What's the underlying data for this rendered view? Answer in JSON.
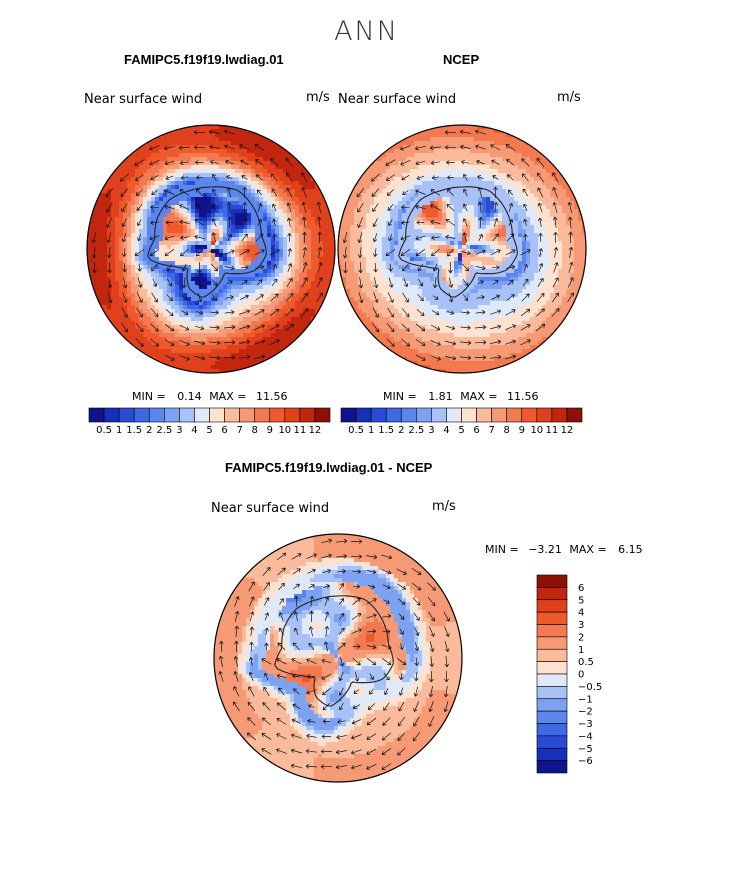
{
  "title": "ANN",
  "panels": [
    {
      "id": "model",
      "title": "FAMIPC5.f19f19.lwdiag.01",
      "field_label": "Near surface wind",
      "units": "m/s",
      "stats": {
        "min_label": "MIN =",
        "min": "0.14",
        "max_label": "MAX =",
        "max": "11.56"
      },
      "colorbar": {
        "levels": [
          "0.5",
          "1",
          "1.5",
          "2",
          "2.5",
          "3",
          "4",
          "5",
          "6",
          "7",
          "8",
          "9",
          "10",
          "11",
          "12"
        ],
        "colors": [
          "#10148c",
          "#1a2fb8",
          "#2b4bd6",
          "#3d68e6",
          "#5a86ee",
          "#7ea2f2",
          "#a8c1f6",
          "#dfe9f8",
          "#fde2d0",
          "#f9bb9c",
          "#f69a75",
          "#f37a50",
          "#ee5a2c",
          "#e0401c",
          "#c2260f",
          "#8e1006"
        ]
      }
    },
    {
      "id": "obs",
      "title": "NCEP",
      "field_label": "Near surface wind",
      "units": "m/s",
      "stats": {
        "min_label": "MIN =",
        "min": "1.81",
        "max_label": "MAX =",
        "max": "11.56"
      },
      "colorbar": {
        "levels": [
          "0.5",
          "1",
          "1.5",
          "2",
          "2.5",
          "3",
          "4",
          "5",
          "6",
          "7",
          "8",
          "9",
          "10",
          "11",
          "12"
        ],
        "colors": [
          "#10148c",
          "#1a2fb8",
          "#2b4bd6",
          "#3d68e6",
          "#5a86ee",
          "#7ea2f2",
          "#a8c1f6",
          "#dfe9f8",
          "#fde2d0",
          "#f9bb9c",
          "#f69a75",
          "#f37a50",
          "#ee5a2c",
          "#e0401c",
          "#c2260f",
          "#8e1006"
        ]
      }
    },
    {
      "id": "diff",
      "title": "FAMIPC5.f19f19.lwdiag.01 - NCEP",
      "field_label": "Near surface wind",
      "units": "m/s",
      "stats": {
        "min_label": "MIN =",
        "min": "−3.21",
        "max_label": "MAX =",
        "max": "6.15"
      },
      "colorbar": {
        "levels": [
          "6",
          "5",
          "4",
          "3",
          "2",
          "1",
          "0.5",
          "0",
          "−0.5",
          "−1",
          "−2",
          "−3",
          "−4",
          "−5",
          "−6"
        ],
        "colors": [
          "#8e1006",
          "#c2260f",
          "#e0401c",
          "#ee5a2c",
          "#f37a50",
          "#f69a75",
          "#f9bb9c",
          "#fde2d0",
          "#dfe9f8",
          "#a8c1f6",
          "#7ea2f2",
          "#5a86ee",
          "#3d68e6",
          "#2b4bd6",
          "#1a2fb8",
          "#10148c"
        ]
      }
    }
  ]
}
